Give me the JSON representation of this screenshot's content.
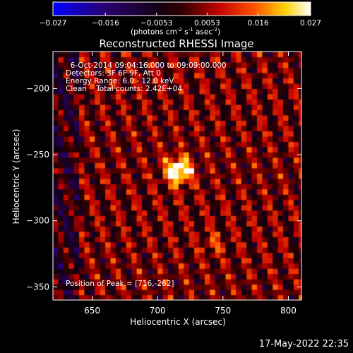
{
  "colorbar": {
    "ticks": [
      "-0.027",
      "-0.016",
      "-0.0053",
      "0.0053",
      "0.016",
      "0.027"
    ],
    "tick_values": [
      -0.027,
      -0.016,
      -0.0053,
      0.0053,
      0.016,
      0.027
    ],
    "range": [
      -0.027,
      0.027
    ],
    "units_main": "(photons cm",
    "units_sup1": "-2",
    "units_mid": " s",
    "units_sup2": "-1",
    "units_tail": " asec",
    "units_sup3": "-2",
    "units_close": ")",
    "colors": [
      "#0000ff",
      "#2a0050",
      "#000000",
      "#7a0000",
      "#ff2000",
      "#ffd000",
      "#ffffff"
    ]
  },
  "info": {
    "line1": "  6-Oct-2014 09:04:16.000 to 09:09:00.000",
    "line2": "Detectors: 3F 6F 9F, Att 0",
    "line3": "Energy Range: 6.0 - 12.0 keV",
    "line4": "Clean    Total counts: 2.42E+04",
    "peak": "Position of Peak = [716,-262]"
  },
  "footer": {
    "timestamp": "17-May-2022 22:35"
  },
  "chart_data": {
    "type": "heatmap",
    "title": "Reconstructed RHESSI Image",
    "xlabel": "Heliocentric X (arcsec)",
    "ylabel": "Heliocentric Y (arcsec)",
    "xlim": [
      620,
      810
    ],
    "ylim": [
      -360,
      -172
    ],
    "xticks": [
      650,
      700,
      750,
      800
    ],
    "yticks": [
      -200,
      -250,
      -300,
      -350
    ],
    "xtick_labels": [
      "650",
      "700",
      "750",
      "800"
    ],
    "ytick_labels": [
      "−200",
      "−250",
      "−300",
      "−350"
    ],
    "peak": {
      "x": 716,
      "y": -262
    },
    "secondary_source": {
      "x": 743,
      "y": -317
    },
    "pixel_size_arcsec": 4,
    "value_range": [
      -0.027,
      0.027
    ],
    "grid": false
  }
}
